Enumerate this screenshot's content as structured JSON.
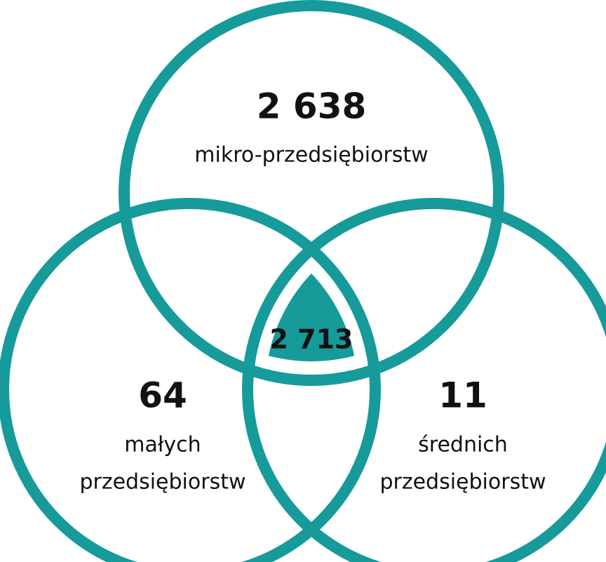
{
  "sets": [
    {
      "value": "2 638",
      "label": [
        "mikro-przedsiębiorstw"
      ]
    },
    {
      "value": "64",
      "label": [
        "małych",
        "przedsiębiorstw"
      ]
    },
    {
      "value": "11",
      "label": [
        "średnich",
        "przedsiębiorstw"
      ]
    }
  ],
  "center": {
    "value": "2 713"
  }
}
